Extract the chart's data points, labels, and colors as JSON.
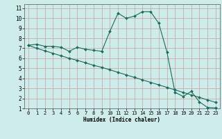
{
  "title": "",
  "xlabel": "Humidex (Indice chaleur)",
  "bg_color": "#cdecea",
  "grid_color": "#c8a0a0",
  "line_color": "#1a6b5a",
  "xlim": [
    -0.5,
    23.5
  ],
  "ylim": [
    1,
    11.4
  ],
  "xticks": [
    0,
    1,
    2,
    3,
    4,
    5,
    6,
    7,
    8,
    9,
    10,
    11,
    12,
    13,
    14,
    15,
    16,
    17,
    18,
    19,
    20,
    21,
    22,
    23
  ],
  "yticks": [
    1,
    2,
    3,
    4,
    5,
    6,
    7,
    8,
    9,
    10,
    11
  ],
  "curve1_x": [
    0,
    1,
    2,
    3,
    4,
    5,
    6,
    7,
    8,
    9,
    10,
    11,
    12,
    13,
    14,
    15,
    16,
    17,
    18,
    19,
    20,
    21,
    22,
    23
  ],
  "curve1_y": [
    7.3,
    7.4,
    7.2,
    7.2,
    7.1,
    6.7,
    7.1,
    6.9,
    6.8,
    6.7,
    8.7,
    10.5,
    10.0,
    10.2,
    10.65,
    10.65,
    9.5,
    6.65,
    2.6,
    2.2,
    2.7,
    1.65,
    1.1,
    1.05
  ],
  "curve2_x": [
    0,
    1,
    2,
    3,
    4,
    5,
    6,
    7,
    8,
    9,
    10,
    11,
    12,
    13,
    14,
    15,
    16,
    17,
    18,
    19,
    20,
    21,
    22,
    23
  ],
  "curve2_y": [
    7.3,
    7.0,
    6.75,
    6.5,
    6.25,
    6.0,
    5.8,
    5.55,
    5.3,
    5.1,
    4.85,
    4.6,
    4.35,
    4.1,
    3.85,
    3.6,
    3.35,
    3.1,
    2.85,
    2.6,
    2.35,
    2.1,
    1.85,
    1.6
  ],
  "marker_size": 2.0,
  "line_width": 0.8,
  "tick_fontsize": 5.0,
  "xlabel_fontsize": 5.5
}
